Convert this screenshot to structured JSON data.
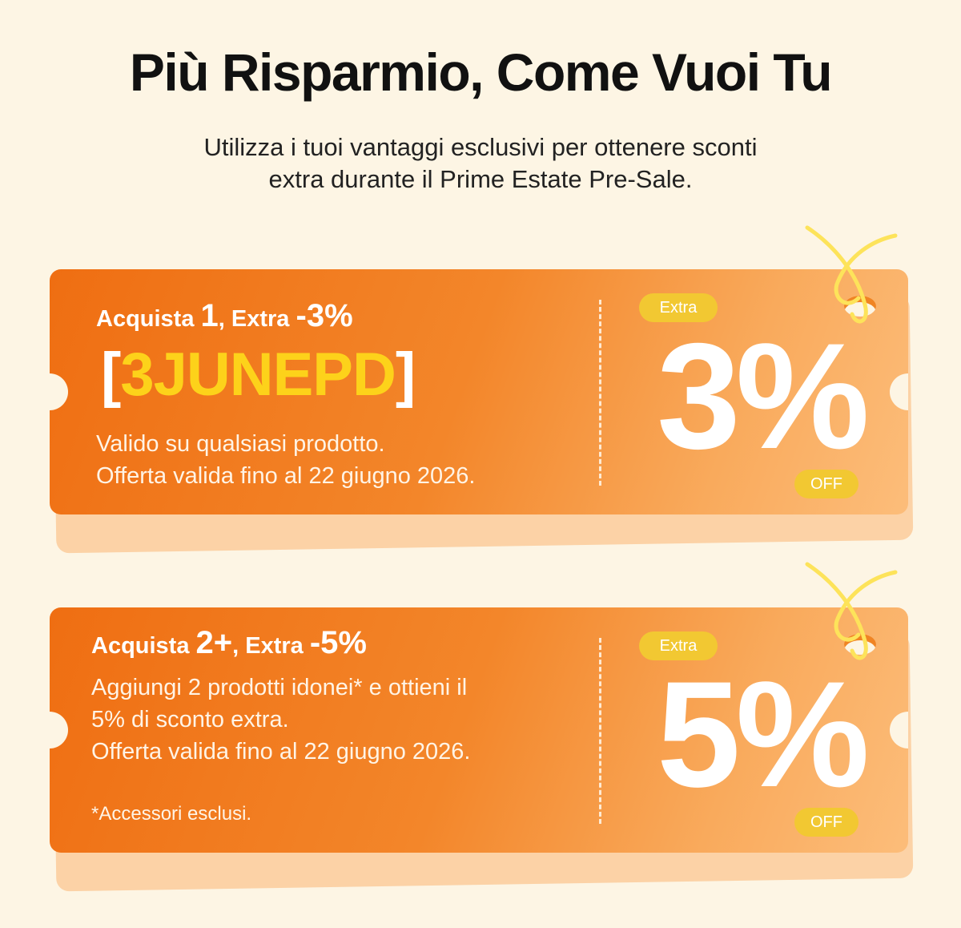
{
  "header": {
    "title": "Più Risparmio, Come Vuoi Tu",
    "subtitle_line1": "Utilizza i tuoi vantaggi esclusivi per ottenere sconti",
    "subtitle_line2": "extra durante il Prime Estate Pre-Sale."
  },
  "coupons": [
    {
      "headline_prefix": "Acquista ",
      "headline_qty": "1",
      "headline_mid": ", Extra ",
      "headline_pct": "-3%",
      "code_open": "[",
      "code": "3JUNEPD",
      "code_close": "]",
      "desc_lines": [
        "Valido su qualsiasi prodotto.",
        "Offerta valida fino al 22 giugno 2026."
      ],
      "extra_label": "Extra",
      "discount": "3%",
      "off_label": "OFF"
    },
    {
      "headline_prefix": "Acquista ",
      "headline_qty": "2+",
      "headline_mid": ", Extra ",
      "headline_pct": "-5%",
      "desc_lines": [
        "Aggiungi 2 prodotti idonei* e ottieni il",
        "5% di sconto extra.",
        "Offerta valida fino al 22 giugno 2026."
      ],
      "footnote": "*Accessori esclusi.",
      "extra_label": "Extra",
      "discount": "5%",
      "off_label": "OFF"
    }
  ],
  "colors": {
    "background": "#fdf5e4",
    "coupon_orange": "#ef6e12",
    "code_yellow": "#fdd21a",
    "pill_yellow": "#f2c832",
    "string_yellow": "#fde35a"
  }
}
